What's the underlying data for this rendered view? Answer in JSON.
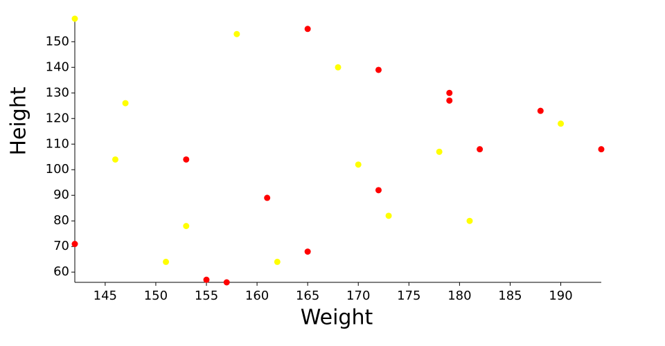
{
  "chart_data": {
    "type": "scatter",
    "x_label": "Weight",
    "y_label": "Height",
    "xlim": [
      142,
      194
    ],
    "ylim": [
      56,
      159
    ],
    "xticks": [
      145,
      150,
      155,
      160,
      165,
      170,
      175,
      180,
      185,
      190
    ],
    "yticks": [
      60,
      70,
      80,
      90,
      100,
      110,
      120,
      130,
      140,
      150
    ],
    "grid": false,
    "series": [
      {
        "color": "#ff0000",
        "x": [
          165,
          172,
          179,
          179,
          188,
          194,
          182,
          153,
          172,
          161,
          142,
          165,
          155,
          157
        ],
        "values": [
          155,
          139,
          130,
          127,
          123,
          108,
          108,
          104,
          92,
          89,
          71,
          68,
          57,
          56
        ]
      },
      {
        "color": "#ffff00",
        "x": [
          142,
          158,
          168,
          147,
          190,
          178,
          146,
          170,
          173,
          181,
          153,
          151,
          162
        ],
        "values": [
          159,
          153,
          140,
          126,
          118,
          107,
          104,
          102,
          82,
          80,
          78,
          64,
          64
        ]
      }
    ]
  }
}
